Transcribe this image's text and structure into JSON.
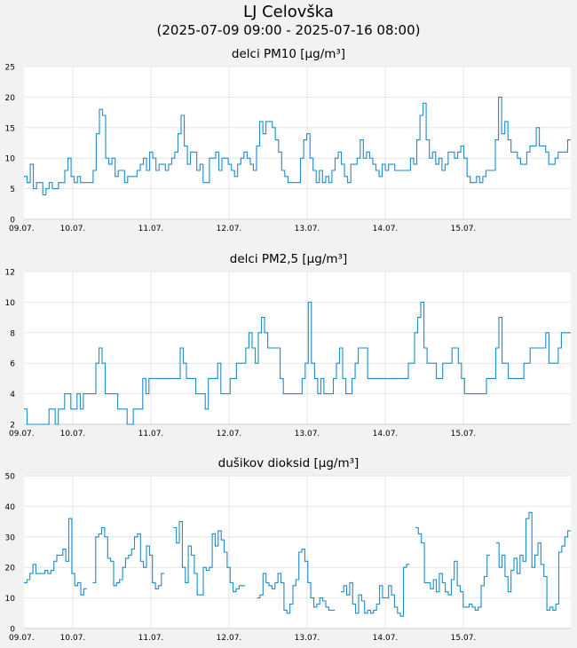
{
  "header": {
    "title": "LJ Celovška",
    "subtitle": "(2025-07-09 09:00 - 2025-07-16 08:00)"
  },
  "colors": {
    "line": "#1f8bc8",
    "grid": "#e6e6e6",
    "plot_bg": "#ffffff",
    "page_bg": "#f2f2f2"
  },
  "chart_data": [
    {
      "type": "line",
      "title": "delci PM10 [µg/m³]",
      "xlabel": "",
      "ylabel": "",
      "ylim": [
        0,
        25
      ],
      "yticks": [
        "0",
        "5",
        "10",
        "15",
        "20",
        "25"
      ],
      "xticks": [
        "09.07.",
        "10.07.",
        "11.07.",
        "12.07.",
        "13.07.",
        "14.07.",
        "15.07."
      ],
      "grid": true,
      "x_start": "2025-07-09 09:00",
      "step_hours": 2,
      "series": [
        {
          "values": [
            7,
            6,
            9,
            5,
            6,
            6,
            4,
            5,
            6,
            5,
            5,
            6,
            6,
            8,
            10,
            7,
            6,
            7,
            6,
            6,
            6,
            6,
            8,
            14,
            18,
            17,
            10,
            9,
            10,
            7,
            8,
            8,
            6,
            7,
            7,
            7,
            8,
            9,
            10,
            8,
            11,
            10,
            8,
            9,
            9,
            8,
            9,
            10,
            11,
            14,
            17,
            12,
            9,
            11,
            11,
            8,
            9,
            6,
            6,
            10,
            10,
            11,
            8,
            10,
            10,
            9,
            8,
            7,
            9,
            10,
            11,
            10,
            9,
            8,
            12,
            16,
            14,
            16,
            16,
            15,
            13,
            11,
            8,
            7,
            6,
            6,
            6,
            6,
            10,
            13,
            14,
            10,
            8,
            6,
            8,
            6,
            7,
            6,
            8,
            10,
            11,
            9,
            7,
            6,
            9,
            9,
            10,
            13,
            10,
            11,
            10,
            9,
            8,
            7,
            9,
            8,
            9,
            9,
            8,
            8,
            8,
            8,
            8,
            10,
            9,
            13,
            17,
            19,
            13,
            10,
            11,
            9,
            10,
            8,
            9,
            11,
            11,
            10,
            11,
            12,
            10,
            7,
            6,
            6,
            7,
            6,
            7,
            8,
            8,
            8,
            13,
            20,
            14,
            16,
            13,
            11,
            11,
            10,
            9,
            9,
            11,
            12,
            12,
            15,
            12,
            12,
            11,
            9,
            9,
            10,
            11,
            11,
            11,
            13
          ]
        }
      ]
    },
    {
      "type": "line",
      "title": "delci PM2,5 [µg/m³]",
      "xlabel": "",
      "ylabel": "",
      "ylim": [
        2,
        12
      ],
      "yticks": [
        "2",
        "4",
        "6",
        "8",
        "10",
        "12"
      ],
      "xticks": [
        "09.07.",
        "10.07.",
        "11.07.",
        "12.07.",
        "13.07.",
        "14.07.",
        "15.07."
      ],
      "grid": true,
      "x_start": "2025-07-09 09:00",
      "step_hours": 2,
      "series": [
        {
          "values": [
            3,
            2,
            2,
            2,
            2,
            2,
            2,
            2,
            3,
            3,
            2,
            3,
            3,
            4,
            4,
            3,
            3,
            4,
            3,
            4,
            4,
            4,
            4,
            6,
            7,
            6,
            4,
            4,
            4,
            4,
            3,
            3,
            3,
            2,
            2,
            3,
            3,
            3,
            5,
            4,
            5,
            5,
            5,
            5,
            5,
            5,
            5,
            5,
            5,
            5,
            7,
            6,
            5,
            5,
            5,
            4,
            4,
            4,
            3,
            5,
            5,
            5,
            6,
            4,
            4,
            4,
            5,
            5,
            6,
            6,
            6,
            7,
            8,
            7,
            6,
            8,
            9,
            8,
            7,
            7,
            7,
            7,
            5,
            4,
            4,
            4,
            4,
            4,
            4,
            5,
            6,
            10,
            6,
            5,
            4,
            5,
            4,
            4,
            4,
            5,
            6,
            7,
            5,
            4,
            4,
            5,
            6,
            7,
            7,
            7,
            5,
            5,
            5,
            5,
            5,
            5,
            5,
            5,
            5,
            5,
            5,
            5,
            5,
            6,
            6,
            8,
            9,
            10,
            7,
            6,
            6,
            6,
            5,
            5,
            6,
            6,
            6,
            7,
            7,
            6,
            5,
            4,
            4,
            4,
            4,
            4,
            4,
            4,
            5,
            5,
            5,
            7,
            9,
            6,
            6,
            5,
            5,
            5,
            5,
            5,
            6,
            6,
            7,
            7,
            7,
            7,
            7,
            8,
            6,
            6,
            6,
            7,
            8,
            8,
            8
          ]
        }
      ]
    },
    {
      "type": "line",
      "title": "dušikov dioksid [µg/m³]",
      "xlabel": "",
      "ylabel": "",
      "ylim": [
        0,
        50
      ],
      "yticks": [
        "0",
        "10",
        "20",
        "30",
        "40",
        "50"
      ],
      "xticks": [
        "09.07.",
        "10.07.",
        "11.07.",
        "12.07.",
        "13.07.",
        "14.07.",
        "15.07."
      ],
      "grid": true,
      "x_start": "2025-07-09 09:00",
      "step_hours": 2,
      "series": [
        {
          "values": [
            15,
            16,
            18,
            21,
            18,
            18,
            18,
            19,
            18,
            19,
            22,
            24,
            24,
            26,
            22,
            36,
            18,
            14,
            15,
            11,
            13,
            null,
            null,
            15,
            30,
            31,
            33,
            30,
            23,
            22,
            14,
            15,
            16,
            20,
            23,
            24,
            26,
            30,
            31,
            22,
            20,
            27,
            24,
            15,
            13,
            14,
            18,
            null,
            null,
            null,
            33,
            28,
            35,
            20,
            15,
            27,
            24,
            18,
            11,
            11,
            20,
            19,
            20,
            31,
            27,
            32,
            29,
            25,
            20,
            15,
            12,
            13,
            14,
            14,
            null,
            null,
            null,
            null,
            10,
            11,
            18,
            15,
            14,
            13,
            15,
            18,
            15,
            6,
            5,
            8,
            14,
            16,
            25,
            26,
            22,
            15,
            10,
            7,
            8,
            10,
            9,
            7,
            6,
            6,
            null,
            null,
            12,
            14,
            11,
            15,
            8,
            5,
            11,
            9,
            5,
            6,
            5,
            6,
            8,
            14,
            10,
            10,
            14,
            11,
            7,
            5,
            4,
            20,
            21,
            null,
            null,
            33,
            31,
            28,
            15,
            15,
            13,
            16,
            12,
            18,
            15,
            12,
            11,
            16,
            22,
            14,
            12,
            7,
            7,
            8,
            7,
            6,
            7,
            14,
            17,
            24,
            null,
            null,
            28,
            20,
            24,
            17,
            12,
            19,
            23,
            18,
            24,
            22,
            36,
            38,
            20,
            24,
            28,
            21,
            17,
            6,
            7,
            6,
            8,
            25,
            27,
            30,
            32
          ]
        }
      ]
    }
  ]
}
